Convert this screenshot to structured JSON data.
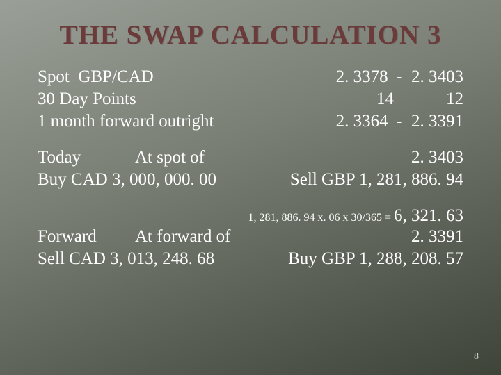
{
  "title": "THE SWAP CALCULATION 3",
  "page_number": "8",
  "table": {
    "rows": [
      {
        "label": "Spot  GBP/CAD",
        "val": "2. 3378  -  2. 3403"
      },
      {
        "label": "30 Day Points",
        "val": "14            12"
      },
      {
        "label": "1 month forward outright",
        "val": "2. 3364  -  2. 3391"
      }
    ]
  },
  "today": {
    "label": "Today",
    "at_label": "At spot of",
    "rate": "2. 3403",
    "buy": "Buy CAD 3, 000, 000. 00",
    "sell": "Sell  GBP 1, 281, 886. 94"
  },
  "calc": {
    "equation": "1, 281, 886. 94 x. 06 x 30/365 = ",
    "result": "6, 321. 63"
  },
  "forward": {
    "label": "Forward",
    "at_label": "At forward of",
    "rate": "2. 3391",
    "sell": "Sell CAD 3, 013, 248. 68",
    "buy": "Buy GBP 1, 288, 208. 57"
  },
  "colors": {
    "title_color": "#6b3a3a",
    "text_color": "#ffffff",
    "bg_gradient_start": "#9a9f97",
    "bg_gradient_end": "#3f4439"
  },
  "typography": {
    "title_fontsize": 39,
    "body_fontsize": 25,
    "calc_fontsize": 16
  }
}
